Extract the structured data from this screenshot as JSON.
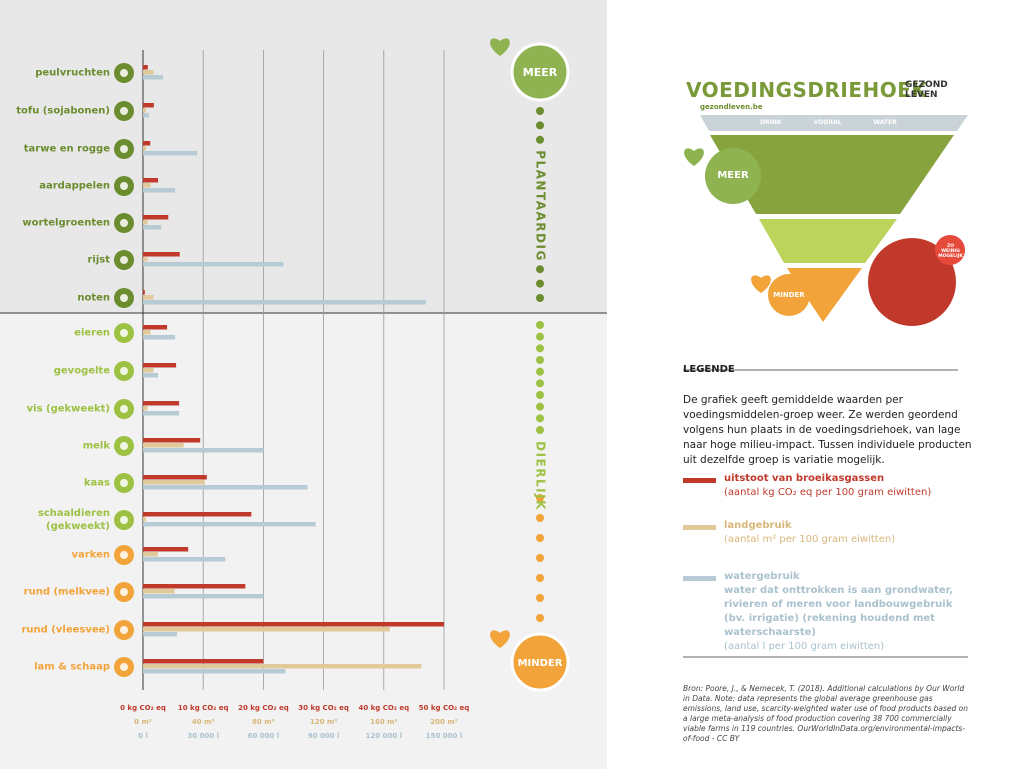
{
  "chart_data": {
    "type": "bar",
    "orientation": "horizontal",
    "categories": [
      "peulvruchten",
      "tofu (sojabonen)",
      "tarwe en rogge",
      "aardappelen",
      "wortelgroenten",
      "rijst",
      "noten",
      "eieren",
      "gevogelte",
      "vis (gekweekt)",
      "melk",
      "kaas",
      "schaaldieren (gekweekt)",
      "varken",
      "rund (melkvee)",
      "rund (vleesvee)",
      "lam & schaap"
    ],
    "category_colors": [
      "#6b8c2f",
      "#6b8c2f",
      "#6b8c2f",
      "#6b8c2f",
      "#6b8c2f",
      "#6b8c2f",
      "#6b8c2f",
      "#9dc143",
      "#9dc143",
      "#9dc143",
      "#9dc143",
      "#9dc143",
      "#9dc143",
      "#f2a33a",
      "#f2a33a",
      "#f2a33a",
      "#f2a33a"
    ],
    "series": [
      {
        "name": "uitstoot van broeikasgassen",
        "unit_note": "(aantal kg CO₂ eq per 100 gram eiwitten)",
        "color": "#c0392b",
        "values": [
          0.8,
          1.8,
          1.2,
          2.5,
          4.2,
          6.1,
          0.3,
          4,
          5.5,
          6,
          9.5,
          10.6,
          18,
          7.5,
          17,
          50,
          20
        ],
        "xlim": [
          0,
          50
        ],
        "xticks": [
          {
            "value": 0,
            "label": "0 kg CO₂ eq"
          },
          {
            "value": 10,
            "label": "10 kg CO₂ eq"
          },
          {
            "value": 20,
            "label": "20 kg CO₂ eq"
          },
          {
            "value": 30,
            "label": "30 kg CO₂ eq"
          },
          {
            "value": 40,
            "label": "40 kg CO₂ eq"
          },
          {
            "value": 50,
            "label": "50 kg CO₂ eq"
          }
        ]
      },
      {
        "name": "landgebruik",
        "unit_note": "(aantal m² per 100 gram eiwitten)",
        "color": "#e2c99a",
        "values": [
          7,
          2,
          2,
          5,
          3,
          3,
          7,
          5,
          7,
          3,
          27,
          41,
          2,
          10,
          21,
          164,
          185
        ],
        "xlim": [
          0,
          200
        ],
        "xticks": [
          {
            "value": 0,
            "label": "0 m²"
          },
          {
            "value": 40,
            "label": "40 m²"
          },
          {
            "value": 80,
            "label": "80 m²"
          },
          {
            "value": 120,
            "label": "120 m²"
          },
          {
            "value": 160,
            "label": "160 m²"
          },
          {
            "value": 200,
            "label": "200 m²"
          }
        ]
      },
      {
        "name": "watergebruik",
        "description": "water dat onttrokken is aan grondwater, rivieren of meren voor landbouwgebruik (bv. irrigatie) (rekening houdend met waterschaarste)",
        "unit_note": "(aantal l per 100 gram eiwitten)",
        "color": "#b7cbd4",
        "values": [
          10000,
          3000,
          27000,
          16000,
          9000,
          70000,
          141000,
          16000,
          7500,
          18000,
          60000,
          82000,
          86000,
          41000,
          60000,
          17000,
          71000
        ],
        "xlim": [
          0,
          150000
        ],
        "xticks": [
          {
            "value": 0,
            "label": "0 l"
          },
          {
            "value": 30000,
            "label": "30 000 l"
          },
          {
            "value": 60000,
            "label": "60 000 l"
          },
          {
            "value": 90000,
            "label": "90 000 l"
          },
          {
            "value": 120000,
            "label": "120 000 l"
          },
          {
            "value": 150000,
            "label": "150 000 l"
          }
        ]
      }
    ],
    "grid": true,
    "group_labels": [
      "PLANTAARDIG",
      "DIERLIJK"
    ],
    "scale_labels": [
      "MEER",
      "MINDER"
    ]
  },
  "sidebar": {
    "title": "VOEDINGSDRIEHOEK",
    "brand": "GEZOND LEVEN",
    "website": "gezondleven.be",
    "pyramid": {
      "top": "DRINK VOORAL WATER",
      "more": "MEER",
      "less": "MINDER",
      "avoid": "ZO WEINIG MOGELIJK"
    },
    "legend": {
      "title": "LEGENDE",
      "text": "De grafiek geeft gemiddelde waarden per voedingsmiddelen-groep weer. Ze werden geordend volgens hun plaats in de voedingsdriehoek, van lage naar hoge milieu-impact. Tussen individuele producten uit dezelfde groep is variatie mogelijk.",
      "source": "Bron: Poore, J., & Nemecek, T. (2018). Additional calculations by Our World in Data. Note: data represents the global average greenhouse gas emissions, land use, scarcity-weighted water use of food products based on a large meta-analysis of food production covering 38 700 commercially viable farms in 119 countries. OurWorldInData.org/environmental-impacts-of-food - CC BY"
    }
  }
}
